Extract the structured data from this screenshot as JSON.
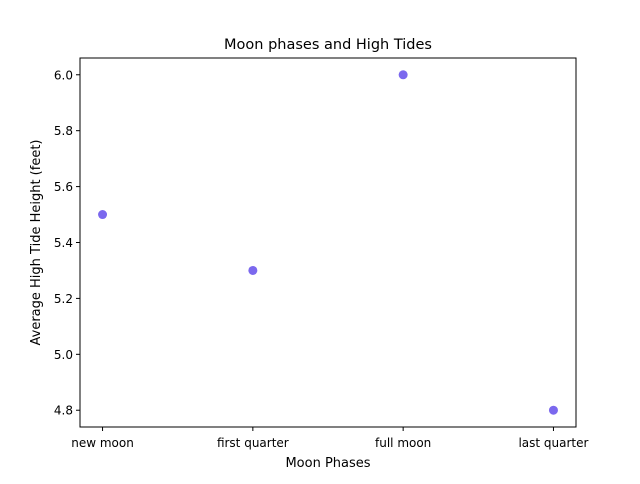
{
  "chart_data": {
    "type": "scatter",
    "title": "Moon phases and High Tides",
    "xlabel": "Moon Phases",
    "ylabel": "Average High Tide Height (feet)",
    "categories": [
      "new moon",
      "first quarter",
      "full moon",
      "last quarter"
    ],
    "values": [
      5.5,
      5.3,
      6.0,
      4.8
    ],
    "ylim": [
      4.74,
      6.06
    ],
    "yticks": [
      4.8,
      5.0,
      5.2,
      5.4,
      5.6,
      5.8,
      6.0
    ],
    "ytick_labels": [
      "4.8",
      "5.0",
      "5.2",
      "5.4",
      "5.6",
      "5.8",
      "6.0"
    ],
    "grid": false,
    "legend": "none",
    "marker_color": "#7b68ee"
  }
}
